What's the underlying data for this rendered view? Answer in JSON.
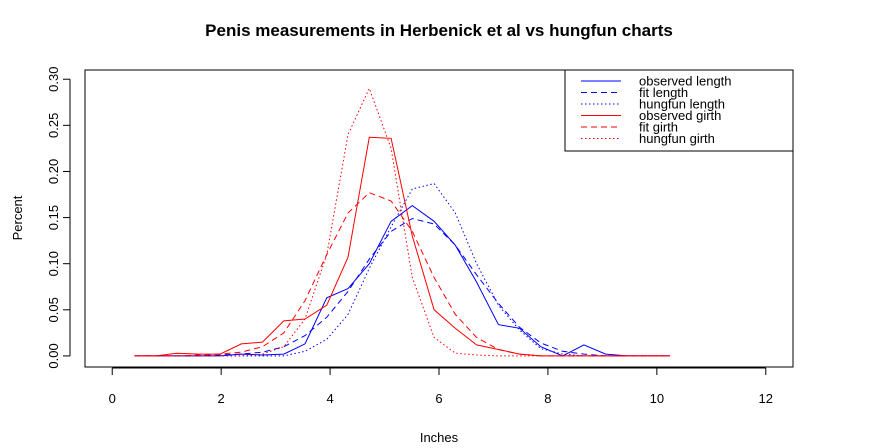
{
  "chart_data": {
    "type": "line",
    "title": "Penis measurements in Herbenick et al vs hungfun charts",
    "xlabel": "Inches",
    "ylabel": "Percent",
    "xlim": [
      -0.5,
      12.5
    ],
    "ylim": [
      -0.012,
      0.31
    ],
    "xticks": [
      0,
      2,
      4,
      6,
      8,
      10,
      12
    ],
    "xtick_labels": [
      "0",
      "2",
      "4",
      "6",
      "8",
      "10",
      "12"
    ],
    "yticks": [
      0.0,
      0.05,
      0.1,
      0.15,
      0.2,
      0.25,
      0.3
    ],
    "ytick_labels": [
      "0.00",
      "0.05",
      "0.10",
      "0.15",
      "0.20",
      "0.25",
      "0.30"
    ],
    "grid": false,
    "legend_position": "top-right",
    "x": [
      0.41,
      0.8,
      1.19,
      1.59,
      1.98,
      2.37,
      2.76,
      3.15,
      3.54,
      3.94,
      4.33,
      4.72,
      5.12,
      5.51,
      5.91,
      6.3,
      6.69,
      7.09,
      7.48,
      7.87,
      8.27,
      8.66,
      9.06,
      9.45,
      9.84,
      10.24
    ],
    "series": [
      {
        "name": "observed length",
        "color": "#0000ff",
        "dash": "solid",
        "values": [
          0.0,
          0.0,
          0.0,
          0.0,
          0.0,
          0.002,
          0.001,
          0.002,
          0.013,
          0.063,
          0.073,
          0.1,
          0.146,
          0.163,
          0.146,
          0.12,
          0.08,
          0.034,
          0.03,
          0.01,
          0.0,
          0.012,
          0.002,
          0.0,
          0.0,
          0.0
        ]
      },
      {
        "name": "fit length",
        "color": "#0000ff",
        "dash": "dashed",
        "values": [
          0.0,
          0.0,
          0.0,
          0.0,
          0.001,
          0.002,
          0.004,
          0.01,
          0.022,
          0.042,
          0.07,
          0.105,
          0.135,
          0.149,
          0.143,
          0.12,
          0.088,
          0.057,
          0.031,
          0.014,
          0.005,
          0.002,
          0.0,
          0.0,
          0.0,
          0.0
        ]
      },
      {
        "name": "hungfun length",
        "color": "#0000ff",
        "dash": "dotted",
        "values": [
          0.0,
          0.0,
          0.0,
          0.0,
          0.0,
          0.0,
          0.0,
          0.0,
          0.005,
          0.018,
          0.045,
          0.095,
          0.14,
          0.181,
          0.187,
          0.155,
          0.1,
          0.055,
          0.028,
          0.008,
          0.002,
          0.0,
          0.0,
          0.0,
          0.0,
          0.0
        ]
      },
      {
        "name": "observed girth",
        "color": "#ff0000",
        "dash": "solid",
        "values": [
          0.0,
          0.0,
          0.003,
          0.002,
          0.002,
          0.013,
          0.015,
          0.038,
          0.04,
          0.055,
          0.107,
          0.237,
          0.236,
          0.13,
          0.05,
          0.03,
          0.012,
          0.007,
          0.002,
          0.0,
          0.0,
          0.0,
          0.0,
          0.0,
          0.0,
          0.0
        ]
      },
      {
        "name": "fit girth",
        "color": "#ff0000",
        "dash": "dashed",
        "values": [
          0.0,
          0.0,
          0.0,
          0.001,
          0.002,
          0.004,
          0.01,
          0.025,
          0.06,
          0.11,
          0.155,
          0.177,
          0.168,
          0.135,
          0.085,
          0.045,
          0.02,
          0.007,
          0.002,
          0.0,
          0.0,
          0.0,
          0.0,
          0.0,
          0.0,
          0.0
        ]
      },
      {
        "name": "hungfun girth",
        "color": "#ff0000",
        "dash": "dotted",
        "values": [
          0.0,
          0.0,
          0.0,
          0.0,
          0.0,
          0.0,
          0.002,
          0.01,
          0.04,
          0.11,
          0.24,
          0.29,
          0.225,
          0.085,
          0.02,
          0.003,
          0.001,
          0.0,
          0.0,
          0.0,
          0.0,
          0.0,
          0.0,
          0.0,
          0.0,
          0.0
        ]
      }
    ]
  }
}
